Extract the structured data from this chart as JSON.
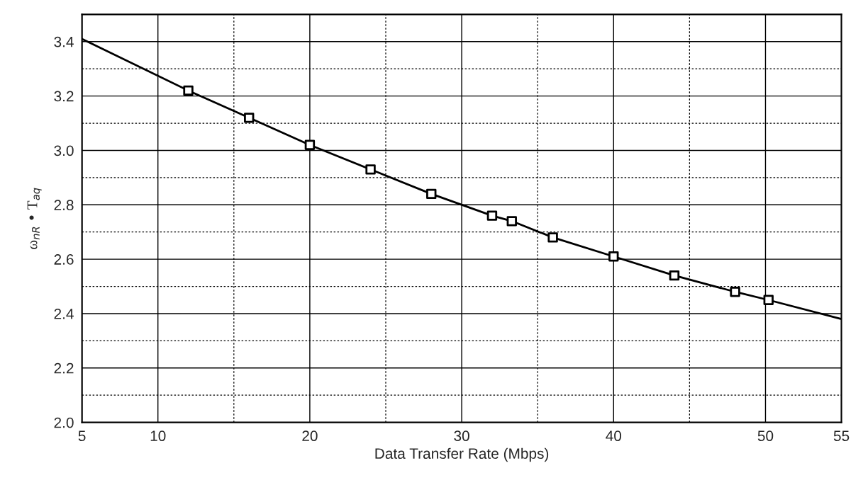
{
  "chart_data": {
    "type": "line",
    "xlabel": "Data Transfer Rate (Mbps)",
    "ylabel": "ω$_{nR}$ • T$_{aq}$",
    "series": [
      {
        "marker": "none",
        "color": "#000000",
        "x": [
          5,
          12,
          16,
          20,
          24,
          28,
          32,
          33.3,
          36,
          40,
          44,
          48,
          50.2,
          55
        ],
        "values": [
          3.41,
          3.22,
          3.12,
          3.02,
          2.93,
          2.84,
          2.76,
          2.74,
          2.68,
          2.61,
          2.54,
          2.48,
          2.45,
          2.38
        ]
      },
      {
        "type": "scatter",
        "marker": "square",
        "color": "#000000",
        "x": [
          12,
          16,
          20,
          24,
          28,
          32,
          33.3,
          36,
          40,
          44,
          48,
          50.2
        ],
        "values": [
          3.22,
          3.12,
          3.02,
          2.93,
          2.84,
          2.76,
          2.74,
          2.68,
          2.61,
          2.54,
          2.48,
          2.45
        ]
      }
    ],
    "xlim": [
      5,
      55
    ],
    "xticks": [
      5,
      10,
      {
        "value": 15,
        "label": null
      },
      20,
      {
        "value": 25,
        "label": null
      },
      30,
      {
        "value": 35,
        "label": null
      },
      40,
      {
        "value": 45,
        "label": null
      },
      50,
      55
    ],
    "ylim": [
      2.0,
      3.5
    ],
    "yticks": [
      {
        "value": 2.0,
        "label": "2.0"
      },
      {
        "value": 2.1,
        "label": null
      },
      2.2,
      {
        "value": 2.3,
        "label": null
      },
      2.4,
      {
        "value": 2.5,
        "label": null
      },
      2.6,
      {
        "value": 2.7,
        "label": null
      },
      2.8,
      {
        "value": 2.9,
        "label": null
      },
      {
        "value": 3.0,
        "label": "3.0"
      },
      {
        "value": 3.1,
        "label": null
      },
      3.2,
      {
        "value": 3.3,
        "label": null
      },
      3.4
    ],
    "grid": true
  }
}
